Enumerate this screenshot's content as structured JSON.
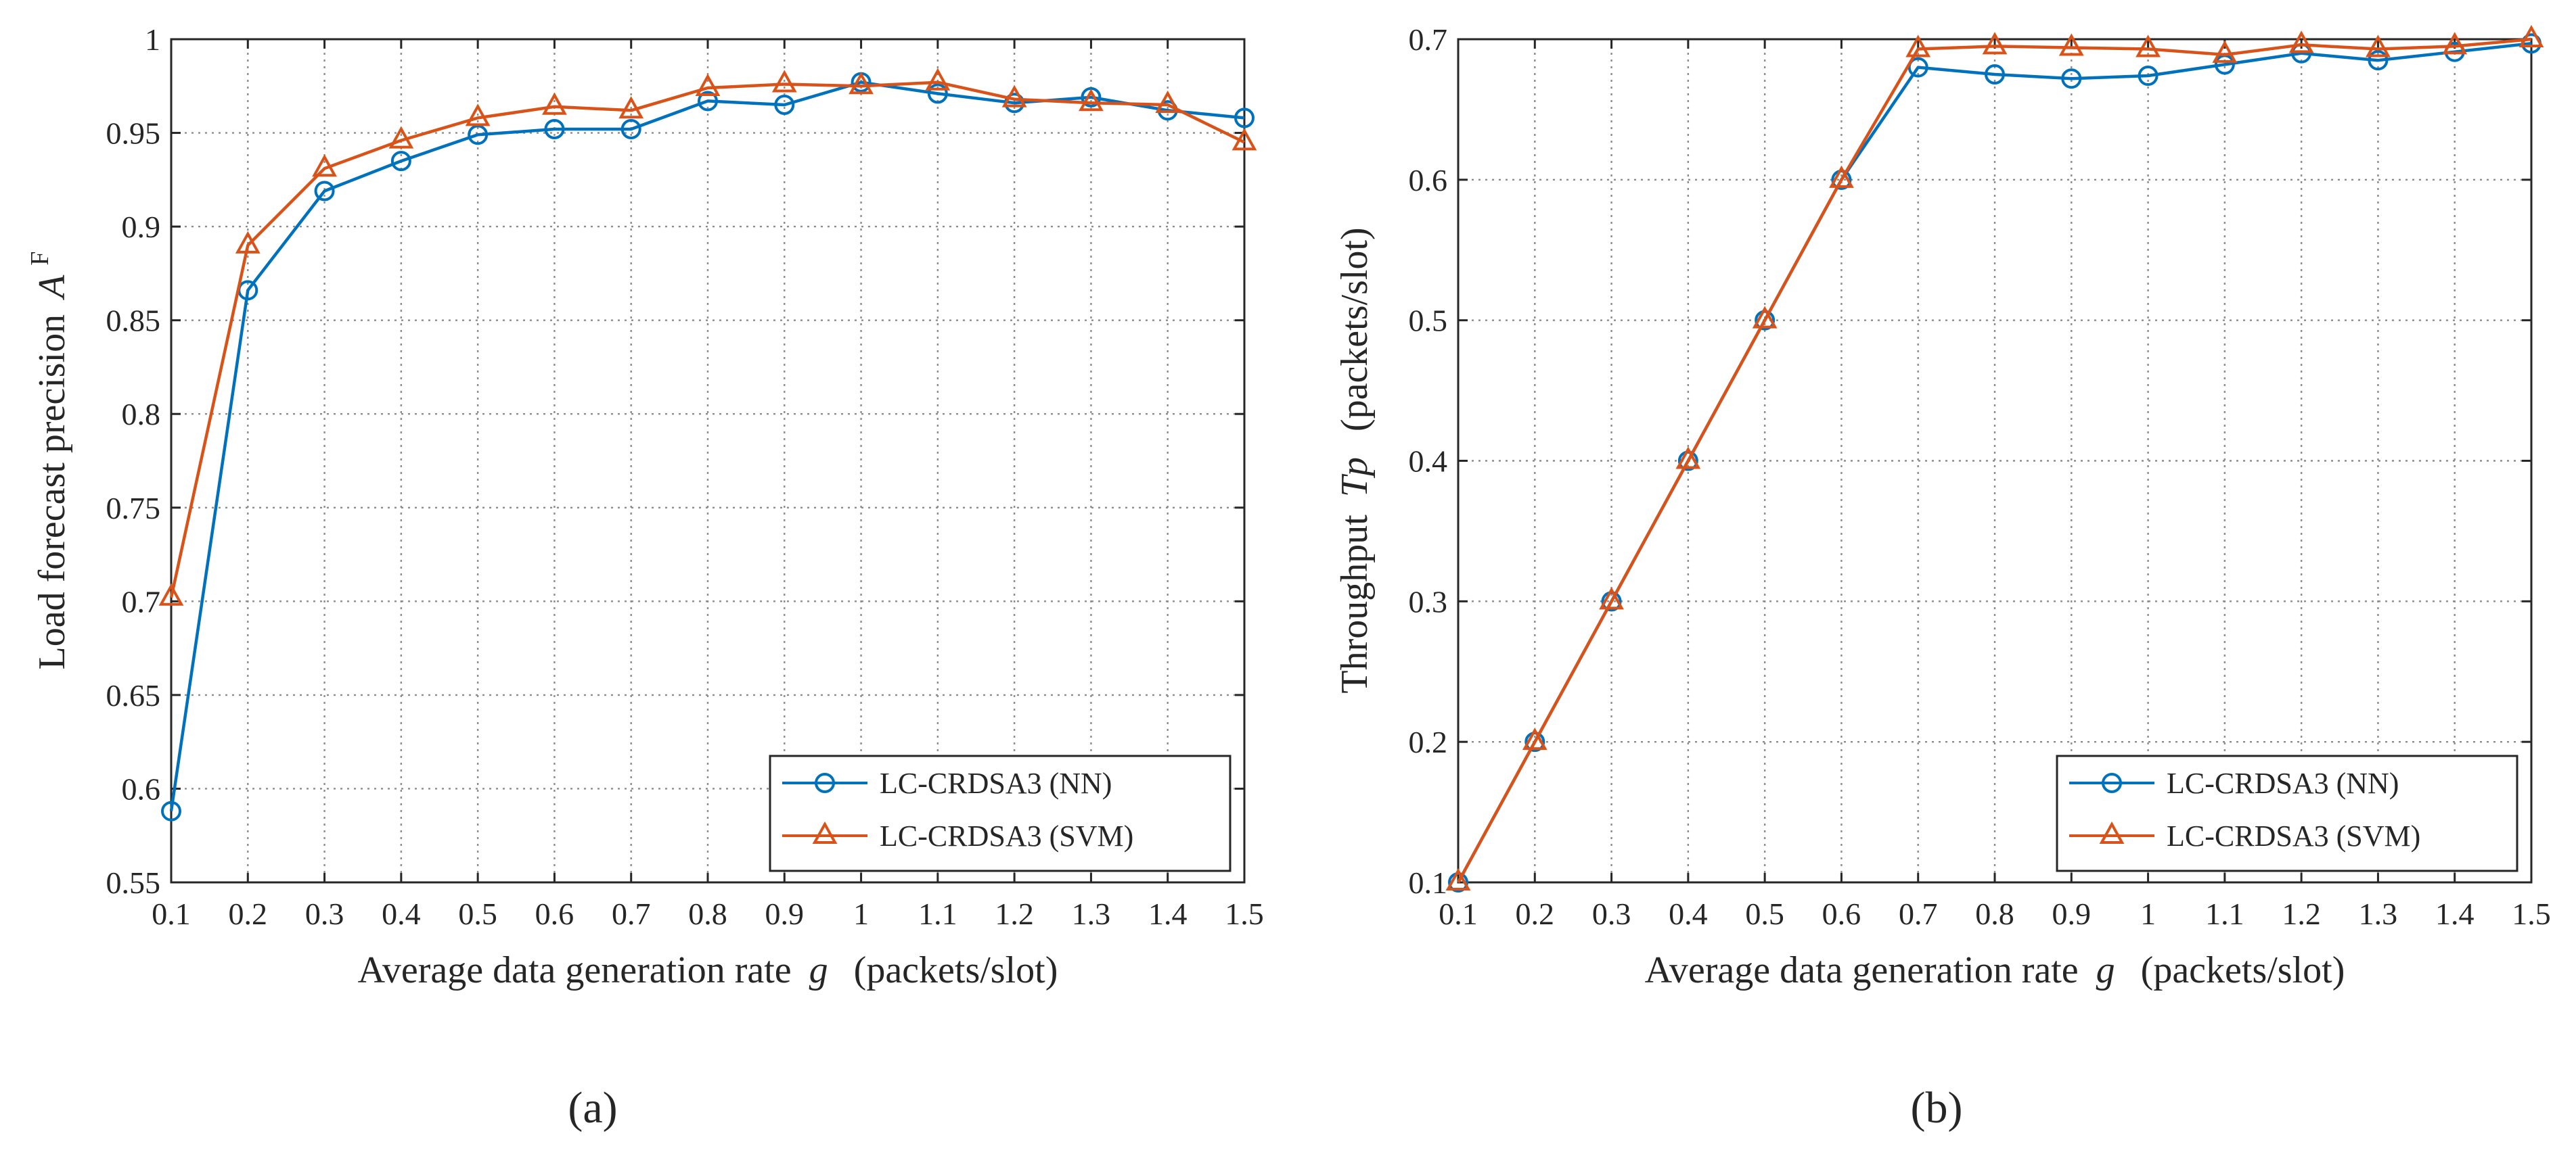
{
  "colors": {
    "nn": "#0072bd",
    "svm": "#d95319",
    "axis": "#262626",
    "grid": "#8c8c8c"
  },
  "chart_data": [
    {
      "panel": "a",
      "panel_label": "(a)",
      "type": "line",
      "x": [
        0.1,
        0.2,
        0.3,
        0.4,
        0.5,
        0.6,
        0.7,
        0.8,
        0.9,
        1.0,
        1.1,
        1.2,
        1.3,
        1.4,
        1.5
      ],
      "x_ticks": [
        "0.1",
        "0.2",
        "0.3",
        "0.4",
        "0.5",
        "0.6",
        "0.7",
        "0.8",
        "0.9",
        "1",
        "1.1",
        "1.2",
        "1.3",
        "1.4",
        "1.5"
      ],
      "xlim": [
        0.1,
        1.5
      ],
      "xlabel": "Average data generation rate",
      "xlabel_var": "g",
      "xlabel_units": "(packets/slot)",
      "ylabel": "Load forecast precision",
      "ylabel_var": "A",
      "ylabel_sup": "F",
      "ylim": [
        0.55,
        1.0
      ],
      "y_ticks": [
        "0.55",
        "0.6",
        "0.65",
        "0.7",
        "0.75",
        "0.8",
        "0.85",
        "0.9",
        "0.95",
        "1"
      ],
      "grid": true,
      "legend_position": "bottom-right",
      "series": [
        {
          "name": "LC-CRDSA3 (NN)",
          "marker": "circle",
          "color": "#0072bd",
          "values": [
            0.588,
            0.866,
            0.919,
            0.935,
            0.949,
            0.952,
            0.952,
            0.967,
            0.965,
            0.977,
            0.971,
            0.966,
            0.969,
            0.962,
            0.958
          ]
        },
        {
          "name": "LC-CRDSA3 (SVM)",
          "marker": "triangle",
          "color": "#d95319",
          "values": [
            0.702,
            0.89,
            0.931,
            0.946,
            0.958,
            0.964,
            0.962,
            0.974,
            0.976,
            0.975,
            0.977,
            0.968,
            0.966,
            0.965,
            0.945
          ]
        }
      ]
    },
    {
      "panel": "b",
      "panel_label": "(b)",
      "type": "line",
      "x": [
        0.1,
        0.2,
        0.3,
        0.4,
        0.5,
        0.6,
        0.7,
        0.8,
        0.9,
        1.0,
        1.1,
        1.2,
        1.3,
        1.4,
        1.5
      ],
      "x_ticks": [
        "0.1",
        "0.2",
        "0.3",
        "0.4",
        "0.5",
        "0.6",
        "0.7",
        "0.8",
        "0.9",
        "1",
        "1.1",
        "1.2",
        "1.3",
        "1.4",
        "1.5"
      ],
      "xlim": [
        0.1,
        1.5
      ],
      "xlabel": "Average data generation rate",
      "xlabel_var": "g",
      "xlabel_units": "(packets/slot)",
      "ylabel": "Throughput",
      "ylabel_var": "Tp",
      "ylabel_units": "(packets/slot)",
      "ylim": [
        0.1,
        0.7
      ],
      "y_ticks": [
        "0.1",
        "0.2",
        "0.3",
        "0.4",
        "0.5",
        "0.6",
        "0.7"
      ],
      "grid": true,
      "legend_position": "bottom-right",
      "series": [
        {
          "name": "LC-CRDSA3 (NN)",
          "marker": "circle",
          "color": "#0072bd",
          "values": [
            0.1,
            0.2,
            0.3,
            0.4,
            0.5,
            0.6,
            0.68,
            0.675,
            0.672,
            0.674,
            0.682,
            0.69,
            0.685,
            0.691,
            0.697
          ]
        },
        {
          "name": "LC-CRDSA3 (SVM)",
          "marker": "triangle",
          "color": "#d95319",
          "values": [
            0.1,
            0.2,
            0.3,
            0.4,
            0.5,
            0.6,
            0.693,
            0.695,
            0.694,
            0.693,
            0.689,
            0.696,
            0.693,
            0.695,
            0.7
          ]
        }
      ]
    }
  ]
}
